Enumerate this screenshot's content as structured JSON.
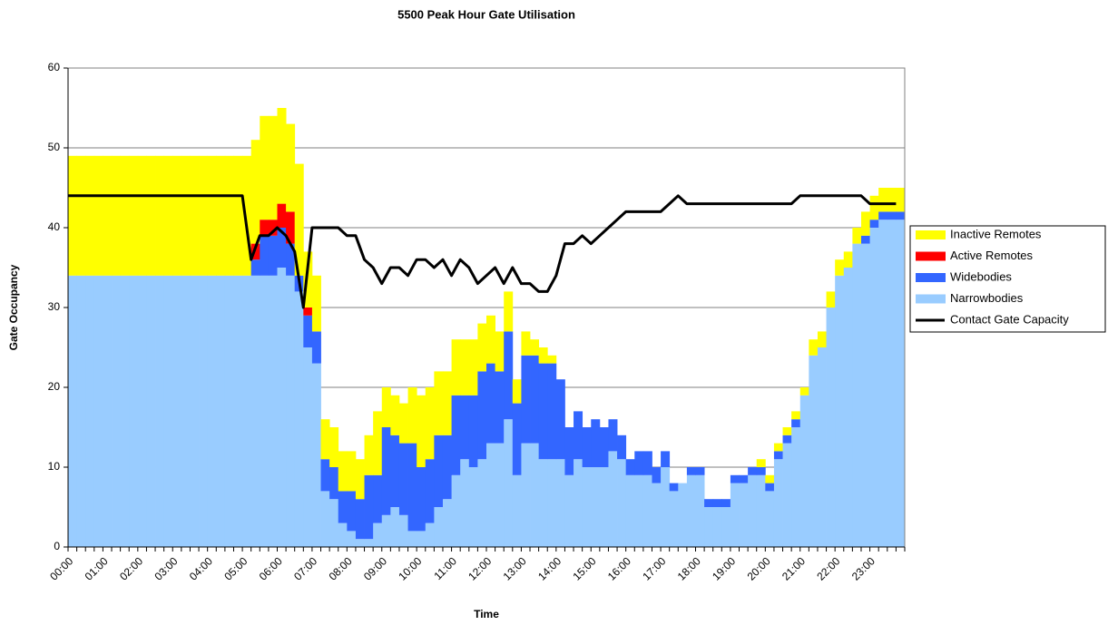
{
  "chart_data": {
    "type": "area",
    "stacked": true,
    "title": "5500 Peak Hour Gate Utilisation",
    "x_label": "Time",
    "y_label": "Gate Occupancy",
    "categories": [
      "00:00",
      null,
      null,
      null,
      "01:00",
      null,
      null,
      null,
      "02:00",
      null,
      null,
      null,
      "03:00",
      null,
      null,
      null,
      "04:00",
      null,
      null,
      null,
      "05:00",
      null,
      null,
      null,
      "06:00",
      null,
      null,
      null,
      "07:00",
      null,
      null,
      null,
      "08:00",
      null,
      null,
      null,
      "09:00",
      null,
      null,
      null,
      "10:00",
      null,
      null,
      null,
      "11:00",
      null,
      null,
      null,
      "12:00",
      null,
      null,
      null,
      "13:00",
      null,
      null,
      null,
      "14:00",
      null,
      null,
      null,
      "15:00",
      null,
      null,
      null,
      "16:00",
      null,
      null,
      null,
      "17:00",
      null,
      null,
      null,
      "18:00",
      null,
      null,
      null,
      "19:00",
      null,
      null,
      null,
      "20:00",
      null,
      null,
      null,
      "21:00",
      null,
      null,
      null,
      "22:00",
      null,
      null,
      null,
      "23:00",
      null,
      null,
      null
    ],
    "ylim": [
      0,
      60
    ],
    "yticks": [
      0,
      10,
      20,
      30,
      40,
      50,
      60
    ],
    "grid": true,
    "legend": "right",
    "series": [
      {
        "name": "Inactive Remotes",
        "color": "#ffff00",
        "values": [
          15,
          15,
          15,
          15,
          15,
          15,
          15,
          15,
          15,
          15,
          15,
          15,
          15,
          15,
          15,
          15,
          15,
          15,
          15,
          15,
          15,
          13,
          13,
          13,
          12,
          11,
          14,
          7,
          7,
          5,
          5,
          5,
          5,
          5,
          5,
          8,
          5,
          5,
          5,
          7,
          9,
          9,
          8,
          8,
          7,
          7,
          7,
          6,
          6,
          5,
          5,
          3,
          3,
          2,
          2,
          1,
          0,
          0,
          0,
          0,
          0,
          0,
          0,
          0,
          0,
          0,
          0,
          0,
          0,
          0,
          0,
          0,
          0,
          0,
          0,
          0,
          0,
          0,
          0,
          1,
          1,
          1,
          1,
          1,
          1,
          2,
          2,
          2,
          2,
          2,
          2,
          3,
          3,
          3,
          3,
          3
        ]
      },
      {
        "name": "Active Remotes",
        "color": "#ff0000",
        "values": [
          0,
          0,
          0,
          0,
          0,
          0,
          0,
          0,
          0,
          0,
          0,
          0,
          0,
          0,
          0,
          0,
          0,
          0,
          0,
          0,
          0,
          2,
          2,
          2,
          3,
          4,
          0,
          1,
          0,
          0,
          0,
          0,
          0,
          0,
          0,
          0,
          0,
          0,
          0,
          0,
          0,
          0,
          0,
          0,
          0,
          0,
          0,
          0,
          0,
          0,
          0,
          0,
          0,
          0,
          0,
          0,
          0,
          0,
          0,
          0,
          0,
          0,
          0,
          0,
          0,
          0,
          0,
          0,
          0,
          0,
          0,
          0,
          0,
          0,
          0,
          0,
          0,
          0,
          0,
          0,
          0,
          0,
          0,
          0,
          0,
          0,
          0,
          0,
          0,
          0,
          0,
          0,
          0,
          0,
          0,
          0
        ]
      },
      {
        "name": "Widebodies",
        "color": "#3366ff",
        "values": [
          0,
          0,
          0,
          0,
          0,
          0,
          0,
          0,
          0,
          0,
          0,
          0,
          0,
          0,
          0,
          0,
          0,
          0,
          0,
          0,
          0,
          2,
          5,
          5,
          5,
          4,
          2,
          4,
          4,
          4,
          4,
          4,
          5,
          5,
          8,
          6,
          11,
          9,
          9,
          11,
          8,
          8,
          9,
          8,
          10,
          8,
          9,
          11,
          10,
          9,
          11,
          9,
          11,
          11,
          12,
          12,
          10,
          6,
          6,
          5,
          6,
          5,
          4,
          3,
          2,
          3,
          3,
          2,
          2,
          1,
          0,
          1,
          1,
          1,
          1,
          1,
          1,
          1,
          1,
          1,
          1,
          1,
          1,
          1,
          0,
          0,
          0,
          0,
          0,
          0,
          0,
          1,
          1,
          1,
          1,
          1
        ]
      },
      {
        "name": "Narrowbodies",
        "color": "#99ccff",
        "values": [
          34,
          34,
          34,
          34,
          34,
          34,
          34,
          34,
          34,
          34,
          34,
          34,
          34,
          34,
          34,
          34,
          34,
          34,
          34,
          34,
          34,
          34,
          34,
          34,
          35,
          34,
          32,
          25,
          23,
          7,
          6,
          3,
          2,
          1,
          1,
          3,
          4,
          5,
          4,
          2,
          2,
          3,
          5,
          6,
          9,
          11,
          10,
          11,
          13,
          13,
          16,
          9,
          13,
          13,
          11,
          11,
          11,
          9,
          11,
          10,
          10,
          10,
          12,
          11,
          9,
          9,
          9,
          8,
          10,
          7,
          8,
          9,
          9,
          5,
          5,
          5,
          8,
          8,
          9,
          9,
          7,
          11,
          13,
          15,
          19,
          24,
          25,
          30,
          34,
          35,
          38,
          38,
          40,
          41,
          41,
          41
        ]
      },
      {
        "name": "Contact Gate Capacity",
        "type": "line",
        "color": "#000000",
        "values": [
          44,
          44,
          44,
          44,
          44,
          44,
          44,
          44,
          44,
          44,
          44,
          44,
          44,
          44,
          44,
          44,
          44,
          44,
          44,
          44,
          44,
          36,
          39,
          39,
          40,
          39,
          37,
          30,
          40,
          40,
          40,
          40,
          39,
          39,
          36,
          35,
          33,
          35,
          35,
          34,
          36,
          36,
          35,
          36,
          34,
          36,
          35,
          33,
          34,
          35,
          33,
          35,
          33,
          33,
          32,
          32,
          34,
          38,
          38,
          39,
          38,
          39,
          40,
          41,
          42,
          42,
          42,
          42,
          42,
          43,
          44,
          43,
          43,
          43,
          43,
          43,
          43,
          43,
          43,
          43,
          43,
          43,
          43,
          43,
          44,
          44,
          44,
          44,
          44,
          44,
          44,
          44,
          43,
          43,
          43,
          43
        ]
      }
    ]
  }
}
